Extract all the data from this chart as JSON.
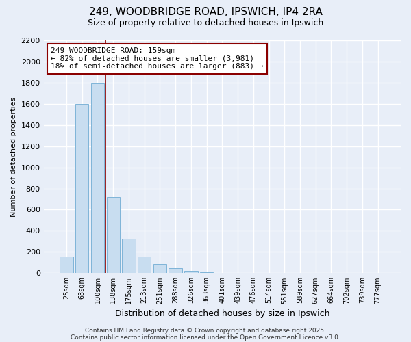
{
  "title_line1": "249, WOODBRIDGE ROAD, IPSWICH, IP4 2RA",
  "title_line2": "Size of property relative to detached houses in Ipswich",
  "bar_labels": [
    "25sqm",
    "63sqm",
    "100sqm",
    "138sqm",
    "175sqm",
    "213sqm",
    "251sqm",
    "288sqm",
    "326sqm",
    "363sqm",
    "401sqm",
    "439sqm",
    "476sqm",
    "514sqm",
    "551sqm",
    "589sqm",
    "627sqm",
    "664sqm",
    "702sqm",
    "739sqm",
    "777sqm"
  ],
  "bar_values": [
    160,
    1600,
    1790,
    720,
    325,
    160,
    85,
    45,
    20,
    10,
    0,
    0,
    0,
    0,
    0,
    0,
    0,
    0,
    0,
    0,
    0
  ],
  "bar_color": "#c8ddf0",
  "bar_edge_color": "#7fb4d8",
  "ylabel": "Number of detached properties",
  "xlabel": "Distribution of detached houses by size in Ipswich",
  "ylim": [
    0,
    2200
  ],
  "yticks": [
    0,
    200,
    400,
    600,
    800,
    1000,
    1200,
    1400,
    1600,
    1800,
    2000,
    2200
  ],
  "annotation_box_text": "249 WOODBRIDGE ROAD: 159sqm\n← 82% of detached houses are smaller (3,981)\n18% of semi-detached houses are larger (883) →",
  "property_line_x": 2.5,
  "background_color": "#e8eef8",
  "grid_color": "#ffffff",
  "footer_line1": "Contains HM Land Registry data © Crown copyright and database right 2025.",
  "footer_line2": "Contains public sector information licensed under the Open Government Licence v3.0."
}
